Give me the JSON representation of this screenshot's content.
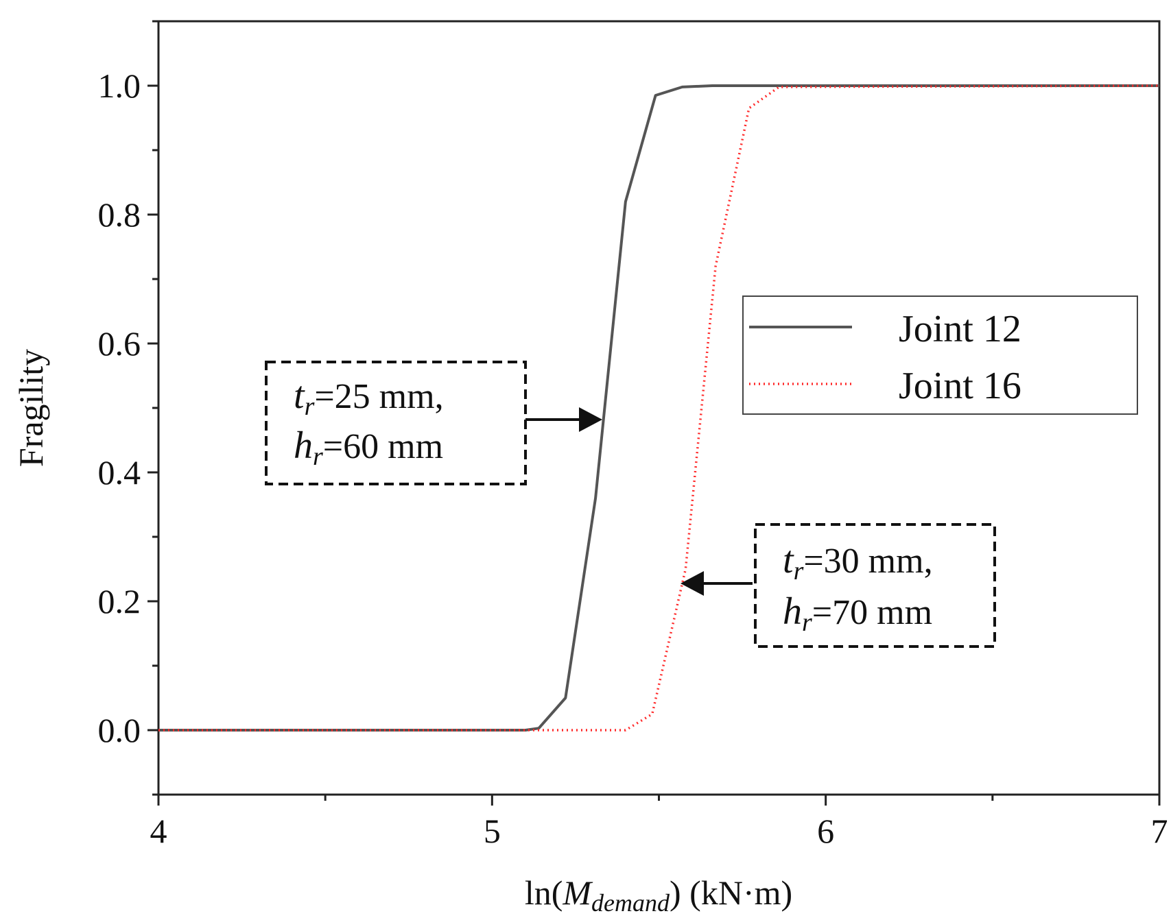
{
  "chart_data": {
    "type": "line",
    "title": "",
    "xlabel": {
      "prefix": "ln(",
      "symbol": "M",
      "subscript": "demand",
      "suffix": ") (kN·m)"
    },
    "ylabel": "Fragility",
    "xlim": [
      4,
      7
    ],
    "ylim": [
      -0.1,
      1.1
    ],
    "x_ticks": [
      4,
      5,
      6,
      7
    ],
    "x_tick_labels": [
      "4",
      "5",
      "6",
      "7"
    ],
    "y_ticks": [
      0.0,
      0.2,
      0.4,
      0.6,
      0.8,
      1.0
    ],
    "y_tick_labels": [
      "0.0",
      "0.2",
      "0.4",
      "0.6",
      "0.8",
      "1.0"
    ],
    "grid": false,
    "legend_position": "right",
    "series": [
      {
        "name": "Joint 12",
        "color": "#555555",
        "style": "solid",
        "x": [
          4.0,
          5.1,
          5.14,
          5.22,
          5.31,
          5.4,
          5.49,
          5.57,
          5.66,
          7.0
        ],
        "y": [
          0.0,
          0.0,
          0.003,
          0.05,
          0.36,
          0.82,
          0.985,
          0.998,
          1.0,
          1.0
        ]
      },
      {
        "name": "Joint 16",
        "color": "#ff2a2a",
        "style": "dotted",
        "x": [
          4.0,
          5.13,
          5.4,
          5.48,
          5.58,
          5.67,
          5.77,
          5.86,
          7.0
        ],
        "y": [
          0.0,
          0.0,
          0.0,
          0.025,
          0.25,
          0.72,
          0.965,
          0.998,
          1.0
        ]
      }
    ],
    "annotations": [
      {
        "line1": {
          "symbol": "t",
          "subscript": "r",
          "text": "=25 mm,"
        },
        "line2": {
          "symbol": "h",
          "subscript": "r",
          "text": "=60 mm"
        },
        "arrow_to": {
          "x": 5.33,
          "y": 0.48
        },
        "arrow_direction": "right"
      },
      {
        "line1": {
          "symbol": "t",
          "subscript": "r",
          "text": "=30 mm,"
        },
        "line2": {
          "symbol": "h",
          "subscript": "r",
          "text": "=70 mm"
        },
        "arrow_to": {
          "x": 5.57,
          "y": 0.225
        },
        "arrow_direction": "left"
      }
    ]
  }
}
